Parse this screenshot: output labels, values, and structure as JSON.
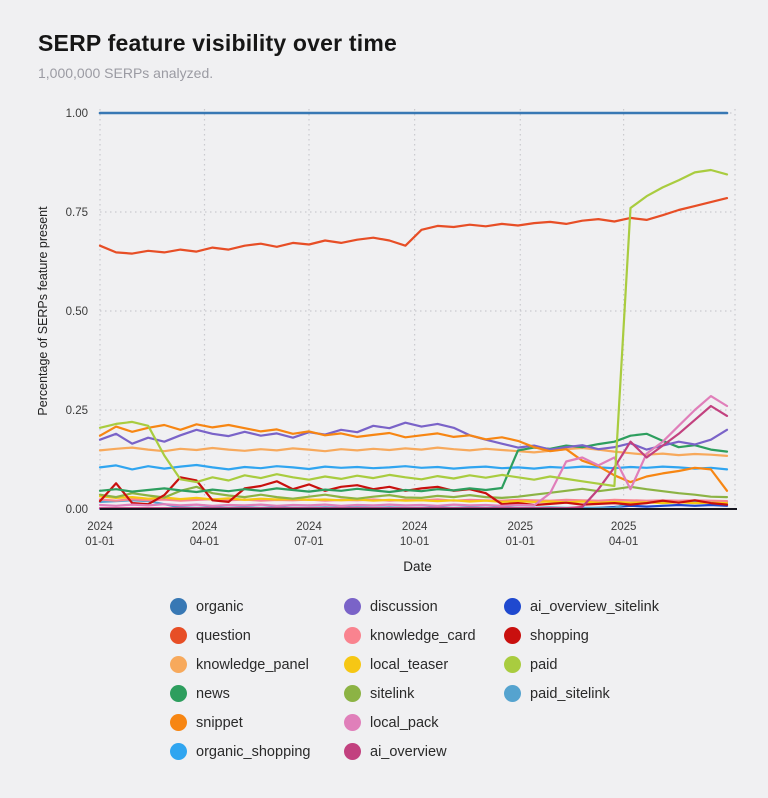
{
  "header": {
    "title": "SERP feature visibility over time",
    "subtitle": "1,000,000 SERPs analyzed."
  },
  "axes": {
    "x_label": "Date",
    "y_label": "Percentage of SERPs feature present",
    "y_ticks": [
      {
        "label": "1.00",
        "value": 1.0
      },
      {
        "label": "0.75",
        "value": 0.75
      },
      {
        "label": "0.50",
        "value": 0.5
      },
      {
        "label": "0.25",
        "value": 0.25
      },
      {
        "label": "0.00",
        "value": 0.0
      }
    ],
    "x_ticks": [
      {
        "line1": "2024",
        "line2": "01-01",
        "day": 0
      },
      {
        "line1": "2024",
        "line2": "04-01",
        "day": 91
      },
      {
        "line1": "2024",
        "line2": "07-01",
        "day": 182
      },
      {
        "line1": "2024",
        "line2": "10-01",
        "day": 274
      },
      {
        "line1": "2025",
        "line2": "01-01",
        "day": 366
      },
      {
        "line1": "2025",
        "line2": "04-01",
        "day": 456
      }
    ]
  },
  "style": {
    "grid_color": "#c9c9ce",
    "spine_color": "#15151f",
    "tick_color": "#3a3a3a",
    "axis_label_color": "#222222",
    "background": "#f0f0f2"
  },
  "chart_data": {
    "type": "line",
    "title": "SERP feature visibility over time",
    "xlabel": "Date",
    "ylabel": "Percentage of SERPs feature present",
    "ylim": [
      0,
      1.0
    ],
    "xlim_days": [
      0,
      553
    ],
    "grid": true,
    "legend_position": "bottom",
    "x_note": "days since 2024-01-01, biweekly samples",
    "x": [
      0,
      14,
      28,
      42,
      56,
      70,
      84,
      98,
      112,
      126,
      140,
      154,
      168,
      182,
      196,
      210,
      224,
      238,
      252,
      266,
      280,
      294,
      308,
      322,
      336,
      350,
      364,
      378,
      392,
      406,
      420,
      434,
      448,
      462,
      476,
      490,
      504,
      518,
      532,
      546
    ],
    "series": [
      {
        "name": "ai_overview_sitelink",
        "color": "#1f49cf",
        "values": [
          0.001,
          0.001,
          0.001,
          0.001,
          0.001,
          0.001,
          0.001,
          0.001,
          0.001,
          0.001,
          0.001,
          0.001,
          0.001,
          0.001,
          0.001,
          0.001,
          0.001,
          0.001,
          0.001,
          0.001,
          0.001,
          0.001,
          0.001,
          0.001,
          0.001,
          0.001,
          0.001,
          0.001,
          0.001,
          0.001,
          0.001,
          0.003,
          0.005,
          0.008,
          0.006,
          0.008,
          0.01,
          0.008,
          0.01,
          0.008
        ]
      },
      {
        "name": "paid_sitelink",
        "color": "#55a3cf",
        "values": [
          0.018,
          0.02,
          0.022,
          0.02,
          0.012,
          0.004,
          0.003,
          0.004,
          0.003,
          0.004,
          0.003,
          0.004,
          0.003,
          0.003,
          0.004,
          0.003,
          0.004,
          0.003,
          0.004,
          0.003,
          0.003,
          0.004,
          0.003,
          0.004,
          0.003,
          0.004,
          0.003,
          0.003,
          0.004,
          0.003,
          0.003,
          0.003,
          0.003,
          0.016,
          0.018,
          0.017,
          0.019,
          0.018,
          0.02,
          0.018
        ]
      },
      {
        "name": "knowledge_card",
        "color": "#f9838f",
        "values": [
          0.024,
          0.021,
          0.025,
          0.022,
          0.024,
          0.021,
          0.023,
          0.025,
          0.022,
          0.024,
          0.021,
          0.023,
          0.022,
          0.024,
          0.021,
          0.023,
          0.022,
          0.024,
          0.021,
          0.023,
          0.022,
          0.024,
          0.021,
          0.023,
          0.022,
          0.021,
          0.023,
          0.022,
          0.021,
          0.023,
          0.022,
          0.021,
          0.023,
          0.022,
          0.021,
          0.022,
          0.021,
          0.022,
          0.021,
          0.02
        ]
      },
      {
        "name": "local_teaser",
        "color": "#f6c714",
        "values": [
          0.032,
          0.028,
          0.03,
          0.026,
          0.029,
          0.025,
          0.028,
          0.024,
          0.027,
          0.023,
          0.026,
          0.024,
          0.025,
          0.023,
          0.024,
          0.022,
          0.024,
          0.021,
          0.023,
          0.021,
          0.022,
          0.02,
          0.022,
          0.019,
          0.021,
          0.018,
          0.02,
          0.018,
          0.019,
          0.017,
          0.019,
          0.016,
          0.018,
          0.016,
          0.017,
          0.015,
          0.017,
          0.015,
          0.016,
          0.015
        ]
      },
      {
        "name": "sitelink",
        "color": "#8cb344",
        "values": [
          0.036,
          0.03,
          0.04,
          0.034,
          0.029,
          0.046,
          0.056,
          0.04,
          0.034,
          0.03,
          0.036,
          0.03,
          0.026,
          0.031,
          0.036,
          0.03,
          0.026,
          0.031,
          0.035,
          0.029,
          0.028,
          0.033,
          0.03,
          0.035,
          0.03,
          0.028,
          0.031,
          0.036,
          0.041,
          0.046,
          0.051,
          0.045,
          0.05,
          0.056,
          0.05,
          0.045,
          0.04,
          0.036,
          0.031,
          0.03
        ]
      },
      {
        "name": "shopping",
        "color": "#c9100e",
        "values": [
          0.02,
          0.065,
          0.015,
          0.012,
          0.035,
          0.08,
          0.072,
          0.022,
          0.018,
          0.052,
          0.058,
          0.07,
          0.05,
          0.062,
          0.046,
          0.056,
          0.06,
          0.05,
          0.056,
          0.046,
          0.052,
          0.056,
          0.046,
          0.05,
          0.04,
          0.012,
          0.015,
          0.01,
          0.013,
          0.016,
          0.011,
          0.013,
          0.015,
          0.011,
          0.015,
          0.021,
          0.016,
          0.022,
          0.015,
          0.011
        ]
      },
      {
        "name": "organic_shopping",
        "color": "#30a5f0",
        "values": [
          0.105,
          0.11,
          0.1,
          0.108,
          0.102,
          0.107,
          0.111,
          0.105,
          0.1,
          0.106,
          0.103,
          0.108,
          0.105,
          0.101,
          0.107,
          0.104,
          0.106,
          0.103,
          0.105,
          0.108,
          0.104,
          0.106,
          0.102,
          0.105,
          0.107,
          0.103,
          0.105,
          0.102,
          0.106,
          0.104,
          0.107,
          0.105,
          0.103,
          0.106,
          0.104,
          0.107,
          0.105,
          0.102,
          0.104,
          0.1
        ]
      },
      {
        "name": "knowledge_panel",
        "color": "#f7a95c",
        "values": [
          0.148,
          0.152,
          0.155,
          0.15,
          0.146,
          0.152,
          0.149,
          0.154,
          0.15,
          0.147,
          0.151,
          0.148,
          0.153,
          0.15,
          0.146,
          0.151,
          0.148,
          0.152,
          0.149,
          0.153,
          0.15,
          0.155,
          0.151,
          0.148,
          0.152,
          0.149,
          0.146,
          0.143,
          0.147,
          0.151,
          0.154,
          0.15,
          0.145,
          0.141,
          0.137,
          0.14,
          0.136,
          0.139,
          0.137,
          0.134
        ]
      },
      {
        "name": "news",
        "color": "#2d9e5e",
        "values": [
          0.046,
          0.05,
          0.044,
          0.048,
          0.052,
          0.047,
          0.043,
          0.049,
          0.045,
          0.05,
          0.046,
          0.052,
          0.048,
          0.044,
          0.049,
          0.046,
          0.051,
          0.047,
          0.043,
          0.048,
          0.045,
          0.05,
          0.047,
          0.052,
          0.048,
          0.053,
          0.148,
          0.155,
          0.152,
          0.16,
          0.156,
          0.164,
          0.17,
          0.185,
          0.19,
          0.172,
          0.156,
          0.161,
          0.15,
          0.145
        ]
      },
      {
        "name": "discussion",
        "color": "#7a63c8",
        "values": [
          0.175,
          0.19,
          0.165,
          0.18,
          0.17,
          0.186,
          0.2,
          0.19,
          0.184,
          0.195,
          0.185,
          0.191,
          0.18,
          0.194,
          0.188,
          0.2,
          0.194,
          0.21,
          0.204,
          0.218,
          0.208,
          0.215,
          0.205,
          0.186,
          0.175,
          0.165,
          0.155,
          0.16,
          0.15,
          0.156,
          0.161,
          0.151,
          0.156,
          0.166,
          0.15,
          0.16,
          0.17,
          0.163,
          0.175,
          0.2
        ]
      },
      {
        "name": "snippet",
        "color": "#f78613",
        "values": [
          0.185,
          0.208,
          0.195,
          0.205,
          0.212,
          0.2,
          0.214,
          0.206,
          0.212,
          0.204,
          0.196,
          0.201,
          0.19,
          0.196,
          0.186,
          0.191,
          0.182,
          0.187,
          0.192,
          0.181,
          0.186,
          0.191,
          0.182,
          0.186,
          0.176,
          0.181,
          0.172,
          0.156,
          0.146,
          0.151,
          0.122,
          0.108,
          0.085,
          0.068,
          0.082,
          0.09,
          0.096,
          0.104,
          0.1,
          0.046
        ]
      },
      {
        "name": "local_pack",
        "color": "#e07fba",
        "values": [
          0.01,
          0.008,
          0.011,
          0.009,
          0.012,
          0.009,
          0.011,
          0.008,
          0.01,
          0.009,
          0.011,
          0.008,
          0.01,
          0.009,
          0.011,
          0.008,
          0.01,
          0.009,
          0.011,
          0.009,
          0.01,
          0.008,
          0.011,
          0.009,
          0.01,
          0.008,
          0.01,
          0.009,
          0.04,
          0.12,
          0.13,
          0.11,
          0.13,
          0.05,
          0.14,
          0.17,
          0.21,
          0.25,
          0.285,
          0.26
        ]
      },
      {
        "name": "ai_overview",
        "color": "#c2417f",
        "values": [
          0.002,
          0.002,
          0.002,
          0.002,
          0.002,
          0.002,
          0.002,
          0.002,
          0.002,
          0.002,
          0.002,
          0.002,
          0.002,
          0.002,
          0.002,
          0.002,
          0.002,
          0.002,
          0.002,
          0.002,
          0.002,
          0.002,
          0.002,
          0.002,
          0.002,
          0.002,
          0.002,
          0.002,
          0.002,
          0.002,
          0.005,
          0.05,
          0.105,
          0.17,
          0.13,
          0.16,
          0.19,
          0.225,
          0.26,
          0.235
        ]
      },
      {
        "name": "question",
        "color": "#e74e26",
        "values": [
          0.665,
          0.648,
          0.645,
          0.652,
          0.648,
          0.655,
          0.65,
          0.66,
          0.655,
          0.665,
          0.67,
          0.662,
          0.672,
          0.668,
          0.678,
          0.672,
          0.68,
          0.685,
          0.678,
          0.665,
          0.705,
          0.715,
          0.712,
          0.718,
          0.714,
          0.72,
          0.716,
          0.722,
          0.725,
          0.72,
          0.728,
          0.732,
          0.726,
          0.735,
          0.73,
          0.742,
          0.755,
          0.765,
          0.775,
          0.785
        ]
      },
      {
        "name": "paid",
        "color": "#a9cc3f",
        "values": [
          0.205,
          0.215,
          0.22,
          0.21,
          0.135,
          0.075,
          0.068,
          0.08,
          0.072,
          0.085,
          0.078,
          0.088,
          0.08,
          0.074,
          0.082,
          0.076,
          0.084,
          0.078,
          0.086,
          0.08,
          0.075,
          0.083,
          0.077,
          0.085,
          0.079,
          0.086,
          0.08,
          0.074,
          0.082,
          0.076,
          0.07,
          0.064,
          0.058,
          0.76,
          0.79,
          0.812,
          0.83,
          0.85,
          0.856,
          0.845
        ]
      },
      {
        "name": "organic",
        "color": "#3878b4",
        "values": [
          1,
          1,
          1,
          1,
          1,
          1,
          1,
          1,
          1,
          1,
          1,
          1,
          1,
          1,
          1,
          1,
          1,
          1,
          1,
          1,
          1,
          1,
          1,
          1,
          1,
          1,
          1,
          1,
          1,
          1,
          1,
          1,
          1,
          1,
          1,
          1,
          1,
          1,
          1,
          1
        ]
      }
    ]
  },
  "legend": {
    "columns": [
      [
        "organic",
        "question",
        "knowledge_panel",
        "news",
        "snippet",
        "organic_shopping"
      ],
      [
        "discussion",
        "knowledge_card",
        "local_teaser",
        "sitelink",
        "local_pack",
        "ai_overview"
      ],
      [
        "ai_overview_sitelink",
        "shopping",
        "paid",
        "paid_sitelink"
      ]
    ]
  }
}
